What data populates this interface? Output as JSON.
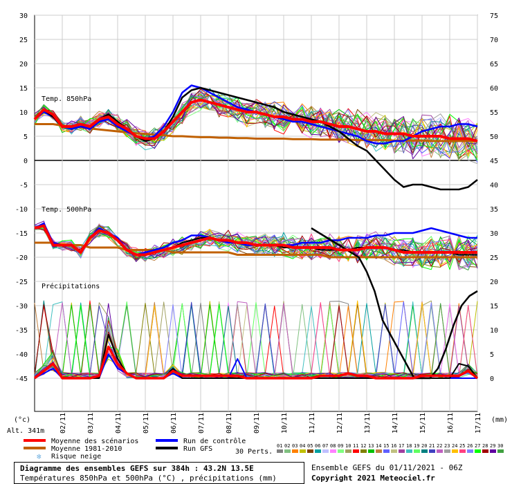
{
  "chart_data": {
    "type": "line",
    "left_axis": {
      "ticks": [
        30,
        25,
        20,
        15,
        10,
        5,
        0,
        -5,
        -10,
        -15,
        -20,
        -25,
        -30,
        -35,
        -40,
        -45
      ],
      "unit": "(°c)",
      "ylim": [
        -45,
        30
      ]
    },
    "right_axis": {
      "ticks": [
        75,
        70,
        65,
        60,
        55,
        50,
        45,
        40,
        35,
        30,
        25,
        20,
        15,
        10,
        5,
        0
      ],
      "unit": "(mm)",
      "ylim": [
        0,
        75
      ]
    },
    "altitude": "Alt. 341m",
    "x_labels": [
      "02/11",
      "03/11",
      "04/11",
      "05/11",
      "06/11",
      "07/11",
      "08/11",
      "09/11",
      "10/11",
      "11/11",
      "12/11",
      "13/11",
      "14/11",
      "15/11",
      "16/11",
      "17/11"
    ],
    "panel_labels": {
      "t850": "Temp. 850hPa",
      "t500": "Temp. 500hPa",
      "precip": "Précipitations"
    },
    "t850": {
      "scenario_mean": [
        8.5,
        10.5,
        9.5,
        7,
        7,
        7.5,
        7,
        8.5,
        9,
        7.5,
        6.5,
        5,
        4.5,
        4.5,
        6,
        8,
        10,
        12,
        12.5,
        12,
        11.5,
        11,
        10.5,
        10,
        10,
        9.5,
        9,
        9,
        8.5,
        8.5,
        8,
        8,
        7.5,
        7,
        7,
        6.5,
        6,
        6,
        5.5,
        5.5,
        5.5,
        5,
        5,
        5,
        5,
        4.5,
        4.5,
        4.5,
        4
      ],
      "climatology": [
        7.5,
        7.5,
        7.5,
        7.2,
        7,
        6.8,
        6.6,
        6.4,
        6.2,
        6,
        5.8,
        5.6,
        5.5,
        5.3,
        5.2,
        5,
        5,
        4.9,
        4.8,
        4.8,
        4.7,
        4.7,
        4.6,
        4.6,
        4.5,
        4.5,
        4.5,
        4.5,
        4.4,
        4.4,
        4.4,
        4.3,
        4.3,
        4.3,
        4.3,
        4.2,
        4.2,
        4.2,
        4.2,
        4.1,
        4.1,
        4.1,
        4.1,
        4,
        4,
        4,
        4,
        4,
        4
      ],
      "control": [
        8.5,
        10,
        9,
        7,
        6.5,
        7,
        6.5,
        8,
        8.5,
        7,
        6,
        5,
        4.5,
        5,
        7,
        10,
        14,
        15.5,
        15,
        14,
        13,
        12,
        11,
        10.5,
        10,
        9.5,
        9,
        8.5,
        8,
        8,
        7.5,
        7,
        6.5,
        6,
        5.5,
        5,
        4,
        3.5,
        3.5,
        4,
        4,
        5,
        6,
        6.5,
        7,
        7,
        7.5,
        7.5,
        7
      ],
      "gfs": [
        8.5,
        10.5,
        9,
        7,
        7,
        7.5,
        7,
        8.5,
        9.5,
        8,
        6.5,
        5,
        4,
        4.5,
        6,
        9,
        13,
        14.5,
        15,
        14.5,
        14,
        13.5,
        13,
        12.5,
        12,
        11.5,
        11,
        10,
        9.5,
        9,
        8.5,
        8,
        7,
        6,
        4.5,
        3,
        2,
        0,
        -2,
        -4,
        -5.5,
        -5,
        -5,
        -5.5,
        -6,
        -6,
        -6,
        -5.5,
        -4
      ]
    },
    "t500": {
      "scenario_mean": [
        -14,
        -13.5,
        -17.5,
        -17.5,
        -17.5,
        -19,
        -16,
        -14.5,
        -15,
        -16.5,
        -18.5,
        -19.5,
        -19.5,
        -19,
        -18.5,
        -18,
        -17.5,
        -17,
        -16.5,
        -16,
        -16.5,
        -16.5,
        -17,
        -17,
        -17.5,
        -17.5,
        -17.5,
        -17.5,
        -18,
        -18,
        -18,
        -18,
        -18,
        -18.5,
        -18.5,
        -18.5,
        -18,
        -18,
        -18,
        -18.5,
        -19,
        -19,
        -19,
        -19,
        -19,
        -19,
        -19,
        -19,
        -19
      ],
      "climatology": [
        -17,
        -17,
        -17,
        -17.5,
        -17.5,
        -17.5,
        -18,
        -18,
        -18,
        -18,
        -18.5,
        -18.5,
        -18.5,
        -18.5,
        -18.5,
        -19,
        -19,
        -19,
        -19,
        -19,
        -19,
        -19,
        -19.5,
        -19.5,
        -19.5,
        -19.5,
        -19.5,
        -19.5,
        -19.5,
        -19.5,
        -19.5,
        -19.5,
        -20,
        -20,
        -20,
        -20,
        -20,
        -20,
        -20,
        -20,
        -20,
        -20,
        -20,
        -20,
        -20,
        -20,
        -20,
        -20,
        -20
      ],
      "control": [
        -14,
        -13,
        -17,
        -17.5,
        -17.5,
        -19,
        -16,
        -14,
        -15,
        -16,
        -18.5,
        -19.5,
        -19,
        -18.5,
        -18,
        -17,
        -16.5,
        -15.5,
        -15.5,
        -16,
        -16.5,
        -17,
        -17,
        -17.5,
        -17.5,
        -17.5,
        -17.5,
        -17.5,
        -17.5,
        -17,
        -17,
        -17,
        -16.5,
        -16.5,
        -16,
        -16,
        -16,
        -15.5,
        -15.5,
        -15,
        -15,
        -15,
        -14.5,
        -14,
        -14.5,
        -15,
        -15.5,
        -16,
        -16
      ],
      "gfs": [
        -14,
        -13.5,
        -17.5,
        -17.5,
        -17.5,
        -19,
        -16,
        -14.5,
        -15,
        -16.5,
        -18.5,
        -19.5,
        -19.5,
        -19,
        -18.5,
        -18,
        -17,
        -16.5,
        -16,
        -16,
        -16.5,
        -16.5,
        -17,
        -17,
        -17.5,
        -17.5,
        -17.5,
        -18,
        -18,
        -18,
        -18,
        -18.5,
        -18.5,
        -18.5,
        -18.5,
        -18,
        -18,
        -18,
        -18,
        -18.5,
        -18.5,
        -19,
        -19,
        -19,
        -19,
        -19,
        -19.5,
        -19.5,
        -19.5
      ]
    },
    "precip": {
      "scenario_mean": [
        0,
        1.5,
        3,
        0,
        0,
        0,
        0,
        0.5,
        6.5,
        3,
        1,
        0,
        0,
        0,
        0,
        1.5,
        0.5,
        0.5,
        0.5,
        0.5,
        0.5,
        0.5,
        0.5,
        0,
        0,
        0,
        0,
        0,
        0,
        0,
        0,
        0.5,
        0.5,
        0.5,
        1,
        0.5,
        0.5,
        0,
        0,
        0,
        0,
        0,
        0.5,
        0.5,
        0.5,
        0.5,
        0.5,
        1.5,
        0
      ],
      "control": [
        0,
        1,
        2,
        0,
        0,
        0,
        0,
        0,
        5,
        2,
        1,
        0,
        0,
        0,
        0,
        1,
        0,
        0,
        0,
        0,
        0,
        0,
        4,
        0,
        0,
        0,
        0,
        0,
        0,
        0,
        0,
        0,
        0,
        0,
        0,
        0,
        0,
        0,
        0,
        0,
        0,
        0,
        0,
        0,
        0,
        0,
        0,
        0,
        0
      ],
      "gfs": [
        0,
        1.5,
        3,
        0,
        0,
        0,
        0,
        0,
        9,
        4,
        1,
        0,
        0,
        0,
        0,
        2,
        0,
        0,
        0,
        0,
        0,
        0,
        0,
        0,
        0,
        0,
        0,
        0,
        0,
        0,
        0,
        0,
        0,
        0,
        0,
        0,
        0,
        0,
        0,
        0,
        0,
        0,
        0,
        0,
        0,
        0,
        3,
        2.5,
        0
      ],
      "gfs_second_axis": [
        31,
        30,
        29,
        28,
        27,
        26,
        25,
        22,
        18,
        12,
        9,
        6,
        3,
        0,
        -1,
        0,
        2,
        6,
        11,
        15,
        17,
        18
      ]
    },
    "perturbation_colors": [
      "#808080",
      "#80c080",
      "#ff8000",
      "#c0c000",
      "#804000",
      "#00a0a0",
      "#c0c0ff",
      "#ff80ff",
      "#80ff80",
      "#a0a060",
      "#ff0000",
      "#808000",
      "#00c000",
      "#c08040",
      "#6060ff",
      "#c0c080",
      "#a040a0",
      "#40c0c0",
      "#60ff60",
      "#008080",
      "#4040c0",
      "#c060c0",
      "#a0a0a0",
      "#ffc000",
      "#ff4080",
      "#8080ff",
      "#00ff00",
      "#a00000",
      "#6000a0",
      "#40a040"
    ],
    "legend": {
      "mean": "Moyenne des scénarios",
      "clim": "Moyenne 1981-2010",
      "snow": "Risque neige",
      "control": "Run de contrôle",
      "gfs": "Run GFS",
      "perts_label": "30 Perts.",
      "perts_numbers": [
        "01",
        "02",
        "03",
        "04",
        "05",
        "06",
        "07",
        "08",
        "09",
        "10",
        "11",
        "12",
        "13",
        "14",
        "15",
        "16",
        "17",
        "18",
        "19",
        "20",
        "21",
        "22",
        "23",
        "24",
        "25",
        "26",
        "27",
        "28",
        "29",
        "30"
      ]
    },
    "colors": {
      "mean": "#ff0000",
      "clim": "#c06000",
      "control": "#0000ff",
      "gfs": "#000000",
      "snow": "#70b0e0"
    }
  },
  "footer": {
    "title": "Diagramme des ensembles GEFS sur 384h : 43.2N 13.5E",
    "subtitle": "Températures 850hPa et 500hPa (°C) , précipitations (mm)",
    "run": "Ensemble GEFS du 01/11/2021 - 06Z",
    "copyright": "Copyright 2021 Meteociel.fr"
  }
}
